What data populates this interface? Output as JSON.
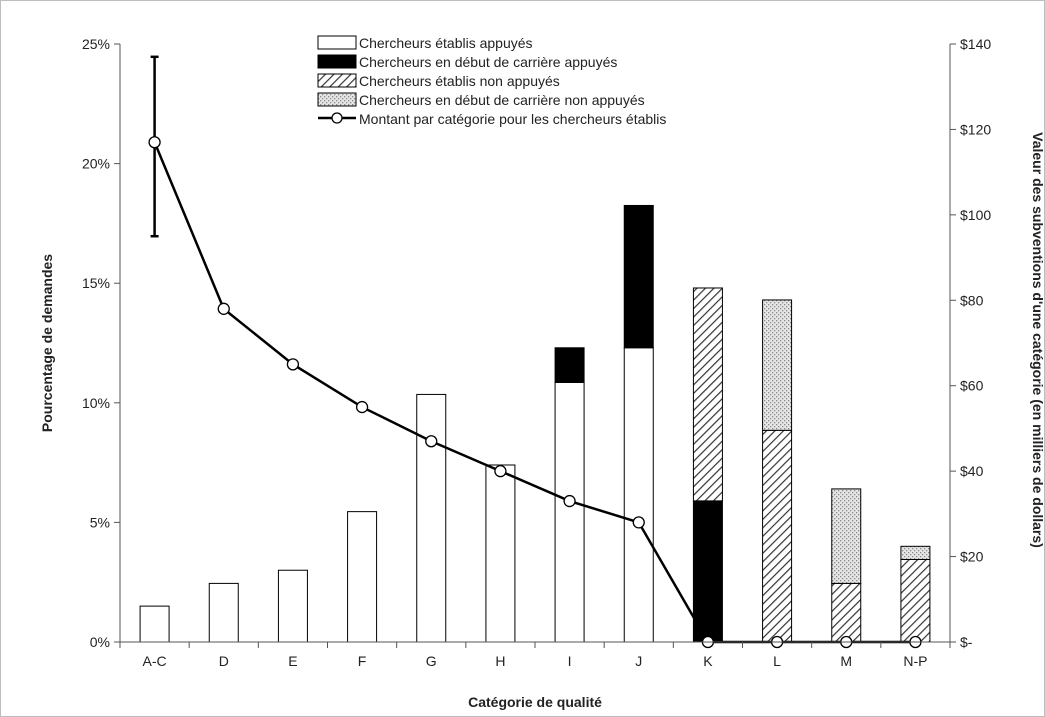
{
  "chart_data": {
    "type": "bar",
    "stacked": true,
    "categories": [
      "A-C",
      "D",
      "E",
      "F",
      "G",
      "H",
      "I",
      "J",
      "K",
      "L",
      "M",
      "N-P"
    ],
    "xlabel": "Catégorie de qualité",
    "ylabel": "Pourcentage de demandes",
    "y2label": "Valeur des subventions d'une catégorie (en milliers de dollars)",
    "ylim": [
      0,
      25
    ],
    "y2lim": [
      0,
      140
    ],
    "yticks": [
      {
        "value": 0,
        "label": "0%"
      },
      {
        "value": 5,
        "label": "5%"
      },
      {
        "value": 10,
        "label": "10%"
      },
      {
        "value": 15,
        "label": "15%"
      },
      {
        "value": 20,
        "label": "20%"
      },
      {
        "value": 25,
        "label": "25%"
      }
    ],
    "y2ticks": [
      {
        "value": 0,
        "label": "$-"
      },
      {
        "value": 20,
        "label": "$20"
      },
      {
        "value": 40,
        "label": "$40"
      },
      {
        "value": 60,
        "label": "$60"
      },
      {
        "value": 80,
        "label": "$80"
      },
      {
        "value": 100,
        "label": "$100"
      },
      {
        "value": 120,
        "label": "$120"
      },
      {
        "value": 140,
        "label": "$140"
      }
    ],
    "grid": false,
    "legend_position": "top-center",
    "series": [
      {
        "name": "Chercheurs établis appuyés",
        "pattern": "white",
        "values": [
          1.5,
          2.45,
          3.0,
          5.45,
          10.35,
          7.4,
          10.85,
          12.3,
          0,
          0,
          0,
          0
        ]
      },
      {
        "name": "Chercheurs en début de carrière appuyés",
        "pattern": "black",
        "values": [
          0,
          0,
          0,
          0,
          0,
          0,
          1.45,
          5.95,
          5.9,
          0,
          0,
          0
        ]
      },
      {
        "name": "Chercheurs établis non appuyés",
        "pattern": "hatch",
        "values": [
          0,
          0,
          0,
          0,
          0,
          0,
          0,
          0,
          8.9,
          8.85,
          2.45,
          3.45
        ]
      },
      {
        "name": "Chercheurs en début de carrière non appuyés",
        "pattern": "dots",
        "values": [
          0,
          0,
          0,
          0,
          0,
          0,
          0,
          0,
          0,
          5.45,
          3.95,
          0.55
        ]
      }
    ],
    "line_series": {
      "name": "Montant par catégorie pour les chercheurs établis",
      "axis": "right",
      "values": [
        117,
        78,
        65,
        55,
        47,
        40,
        33,
        28,
        0,
        0,
        0,
        0
      ],
      "error_bar": {
        "category": "A-C",
        "low": 95,
        "high": 137
      }
    },
    "colors": {
      "bar_stroke": "#000000",
      "black_fill": "#000000",
      "white_fill": "#ffffff",
      "hatch": "#333333",
      "dots": "#9a9a9a"
    }
  }
}
